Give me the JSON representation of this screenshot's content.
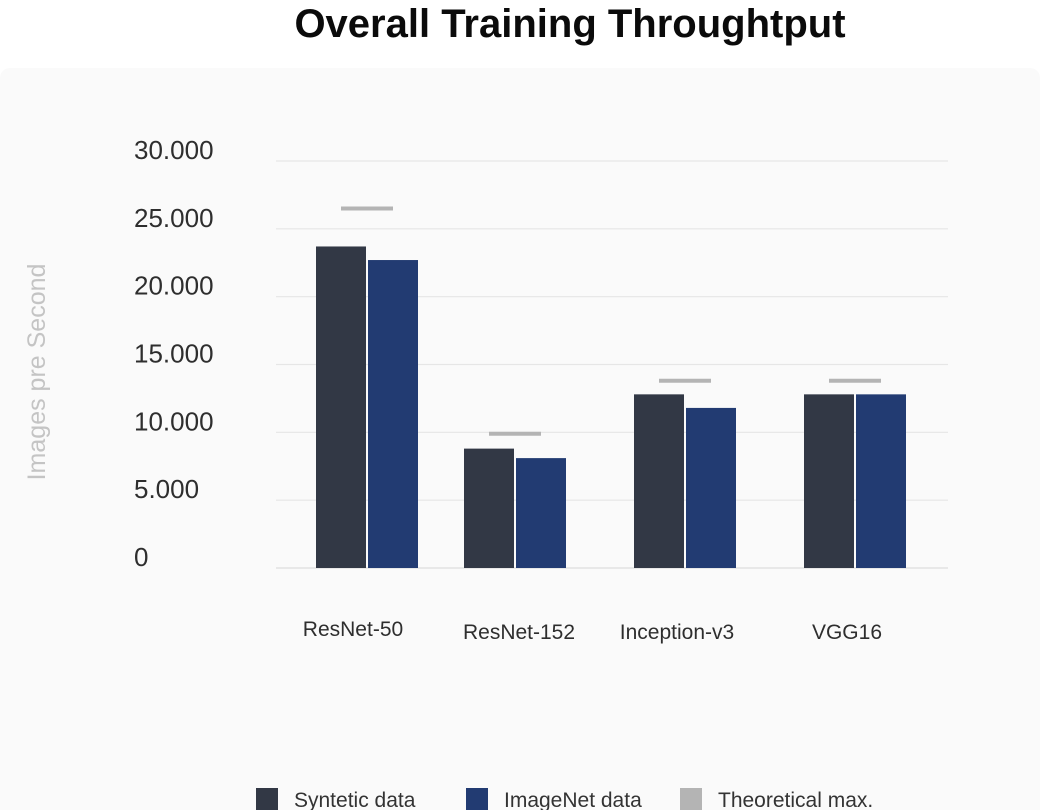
{
  "chart_data": {
    "type": "bar",
    "title": "Overall Training Throughtput",
    "ylabel": "Images pre Second",
    "xlabel": "",
    "ylim": [
      0,
      30000
    ],
    "yticks": [
      0,
      5000,
      10000,
      15000,
      20000,
      25000,
      30000
    ],
    "ytick_labels": [
      "0",
      "5.000",
      "10.000",
      "15.000",
      "20.000",
      "25.000",
      "30.000"
    ],
    "categories": [
      "ResNet-50",
      "ResNet-152",
      "Inception-v3",
      "VGG16"
    ],
    "series": [
      {
        "name": "Syntetic data",
        "kind": "bar",
        "values": [
          23700,
          8800,
          12800,
          12800
        ],
        "color": "#323845"
      },
      {
        "name": "ImageNet data",
        "kind": "bar",
        "values": [
          22700,
          8100,
          11800,
          12800
        ],
        "color": "#223b72"
      },
      {
        "name": "Theoretical max.",
        "kind": "marker",
        "values": [
          26500,
          9900,
          13800,
          13800
        ],
        "color": "#b4b4b4"
      }
    ],
    "grid": true,
    "legend_position": "bottom-center"
  }
}
